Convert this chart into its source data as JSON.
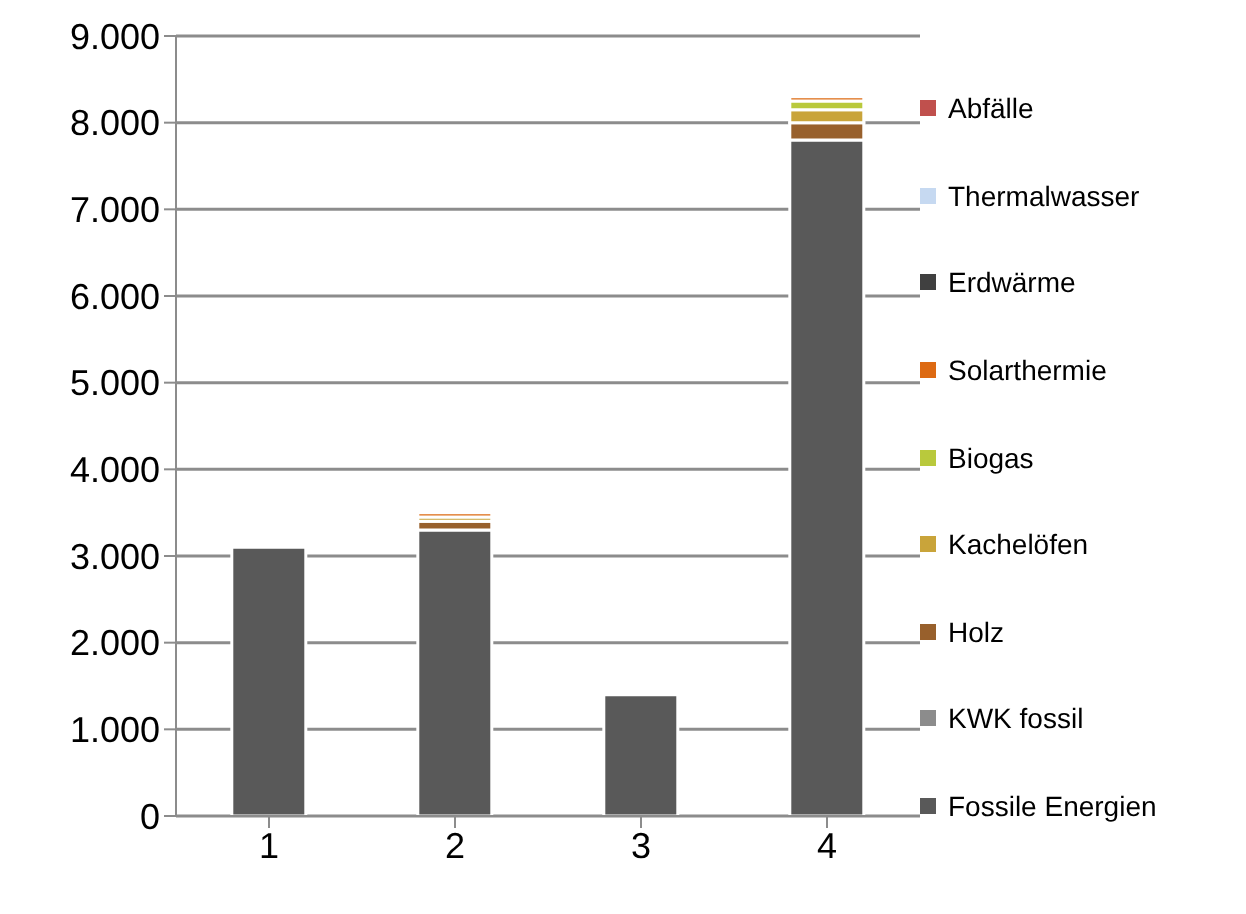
{
  "chart_data": {
    "type": "bar",
    "stacked": true,
    "categories": [
      "1",
      "2",
      "3",
      "4"
    ],
    "series": [
      {
        "name": "Fossile Energien",
        "color": "#595959",
        "values": [
          3100,
          3300,
          1400,
          7800
        ]
      },
      {
        "name": "KWK fossil",
        "color": "#8c8c8c",
        "values": [
          0,
          0,
          0,
          0
        ]
      },
      {
        "name": "Holz",
        "color": "#98602c",
        "values": [
          0,
          100,
          0,
          200
        ]
      },
      {
        "name": "Kachelöfen",
        "color": "#c9a43a",
        "values": [
          0,
          50,
          0,
          150
        ]
      },
      {
        "name": "Biogas",
        "color": "#b9c93c",
        "values": [
          0,
          0,
          0,
          100
        ]
      },
      {
        "name": "Solarthermie",
        "color": "#dd6a12",
        "values": [
          0,
          50,
          0,
          50
        ]
      },
      {
        "name": "Erdwärme",
        "color": "#404040",
        "values": [
          0,
          0,
          0,
          0
        ]
      },
      {
        "name": "Thermalwasser",
        "color": "#c6d9f1",
        "values": [
          0,
          0,
          0,
          0
        ]
      },
      {
        "name": "Abfälle",
        "color": "#c0504d",
        "values": [
          0,
          0,
          0,
          0
        ]
      }
    ],
    "ylim": [
      0,
      9000
    ],
    "yticks": [
      {
        "value": 0,
        "label": "0"
      },
      {
        "value": 1000,
        "label": "1.000"
      },
      {
        "value": 2000,
        "label": "2.000"
      },
      {
        "value": 3000,
        "label": "3.000"
      },
      {
        "value": 4000,
        "label": "4.000"
      },
      {
        "value": 5000,
        "label": "5.000"
      },
      {
        "value": 6000,
        "label": "6.000"
      },
      {
        "value": 7000,
        "label": "7.000"
      },
      {
        "value": 8000,
        "label": "8.000"
      },
      {
        "value": 9000,
        "label": "9.000"
      }
    ],
    "grid": "y",
    "legend": "right"
  }
}
